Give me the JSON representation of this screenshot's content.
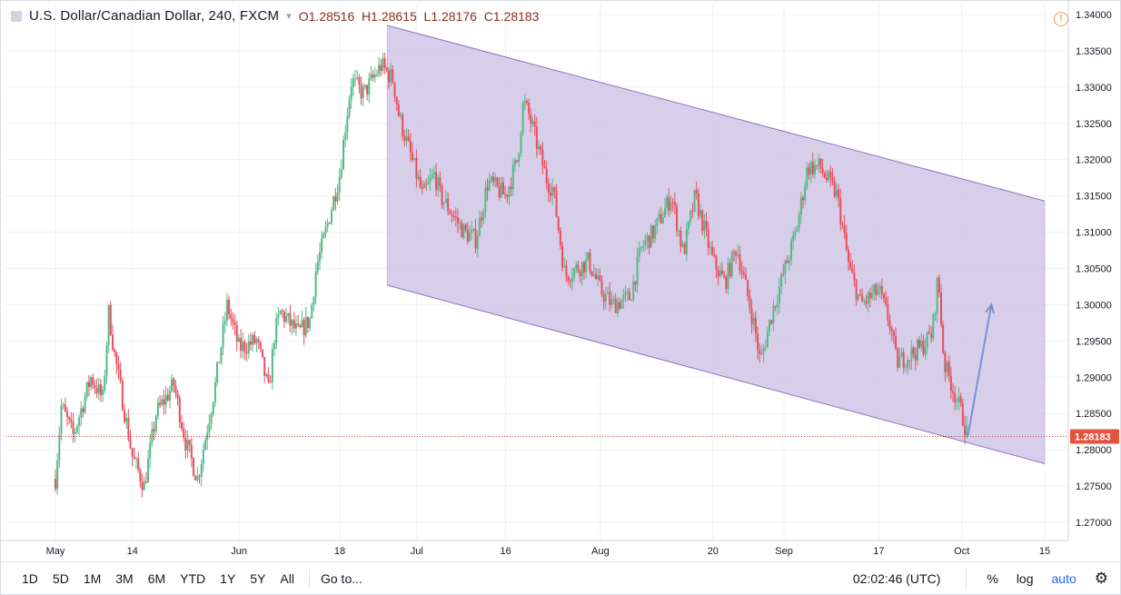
{
  "legend": {
    "symbol": "U.S. Dollar/Canadian Dollar, 240, FXCM",
    "open_label": "O",
    "open": "1.28516",
    "high_label": "H",
    "high": "1.28615",
    "low_label": "L",
    "low": "1.28176",
    "close_label": "C",
    "close": "1.28183"
  },
  "bottom_bar": {
    "ranges": [
      "1D",
      "5D",
      "1M",
      "3M",
      "6M",
      "YTD",
      "1Y",
      "5Y",
      "All"
    ],
    "goto": "Go to...",
    "clock": "02:02:46 (UTC)",
    "percent": "%",
    "log": "log",
    "auto": "auto"
  },
  "icons": {
    "alert": "alert-icon",
    "settings": "gear-icon",
    "symbol": "symbol-icon"
  },
  "colors": {
    "up": "#53b987",
    "down": "#eb4d5c",
    "channel_fill": "#c9bfe3",
    "channel_line": "#8d6fc6",
    "arrow": "#7b8fd0",
    "price_line": "#c0392b",
    "last_price_bg": "#e0533d"
  },
  "chart_data": {
    "type": "candlestick",
    "title": "U.S. Dollar/Canadian Dollar, 240, FXCM",
    "ylim": [
      1.2675,
      1.3415
    ],
    "y_ticks": [
      "1.34000",
      "1.33500",
      "1.33000",
      "1.32500",
      "1.32000",
      "1.31500",
      "1.31000",
      "1.30500",
      "1.30000",
      "1.29500",
      "1.29000",
      "1.28500",
      "1.28000",
      "1.27500",
      "1.27000"
    ],
    "x_ticks": [
      "May",
      "14",
      "Jun",
      "18",
      "Jul",
      "16",
      "Aug",
      "20",
      "Sep",
      "17",
      "Oct",
      "15"
    ],
    "last_price": "1.28183",
    "price_path": [
      [
        "May 1",
        1.276
      ],
      [
        "May 2",
        1.286
      ],
      [
        "May 4",
        1.282
      ],
      [
        "May 7",
        1.29
      ],
      [
        "May 9",
        1.287
      ],
      [
        "May 10",
        1.299
      ],
      [
        "May 11",
        1.293
      ],
      [
        "May 14",
        1.279
      ],
      [
        "May 16",
        1.275
      ],
      [
        "May 18",
        1.285
      ],
      [
        "May 21",
        1.289
      ],
      [
        "May 23",
        1.281
      ],
      [
        "May 25",
        1.276
      ],
      [
        "May 28",
        1.289
      ],
      [
        "May 30",
        1.3
      ],
      [
        "Jun 1",
        1.294
      ],
      [
        "Jun 4",
        1.295
      ],
      [
        "Jun 6",
        1.288
      ],
      [
        "Jun 7",
        1.296
      ],
      [
        "Jun 8",
        1.299
      ],
      [
        "Jun 11",
        1.296
      ],
      [
        "Jun 13",
        1.298
      ],
      [
        "Jun 14",
        1.305
      ],
      [
        "Jun 15",
        1.308
      ],
      [
        "Jun 18",
        1.318
      ],
      [
        "Jun 19",
        1.325
      ],
      [
        "Jun 20",
        1.331
      ],
      [
        "Jun 22",
        1.329
      ],
      [
        "Jun 25",
        1.333
      ],
      [
        "Jun 27",
        1.331
      ],
      [
        "Jun 28",
        1.326
      ],
      [
        "Jul 2",
        1.315
      ],
      [
        "Jul 4",
        1.318
      ],
      [
        "Jul 5",
        1.315
      ],
      [
        "Jul 9",
        1.31
      ],
      [
        "Jul 11",
        1.309
      ],
      [
        "Jul 13",
        1.317
      ],
      [
        "Jul 16",
        1.315
      ],
      [
        "Jul 18",
        1.32
      ],
      [
        "Jul 19",
        1.328
      ],
      [
        "Jul 20",
        1.326
      ],
      [
        "Jul 23",
        1.317
      ],
      [
        "Jul 24",
        1.316
      ],
      [
        "Jul 26",
        1.304
      ],
      [
        "Jul 30",
        1.306
      ],
      [
        "Aug 1",
        1.302
      ],
      [
        "Aug 3",
        1.3
      ],
      [
        "Aug 6",
        1.301
      ],
      [
        "Aug 8",
        1.308
      ],
      [
        "Aug 10",
        1.31
      ],
      [
        "Aug 13",
        1.315
      ],
      [
        "Aug 15",
        1.307
      ],
      [
        "Aug 17",
        1.315
      ],
      [
        "Aug 20",
        1.306
      ],
      [
        "Aug 22",
        1.303
      ],
      [
        "Aug 24",
        1.308
      ],
      [
        "Aug 27",
        1.297
      ],
      [
        "Aug 28",
        1.292
      ],
      [
        "Aug 30",
        1.299
      ],
      [
        "Sep 3",
        1.31
      ],
      [
        "Sep 5",
        1.319
      ],
      [
        "Sep 7",
        1.319
      ],
      [
        "Sep 10",
        1.315
      ],
      [
        "Sep 12",
        1.305
      ],
      [
        "Sep 14",
        1.3
      ],
      [
        "Sep 17",
        1.302
      ],
      [
        "Sep 19",
        1.297
      ],
      [
        "Sep 20",
        1.292
      ],
      [
        "Sep 24",
        1.294
      ],
      [
        "Sep 26",
        1.296
      ],
      [
        "Sep 27",
        1.304
      ],
      [
        "Sep 28",
        1.292
      ],
      [
        "Oct 1",
        1.285
      ],
      [
        "Oct 2",
        1.28183
      ]
    ],
    "channel": {
      "upper": [
        [
          "Jun 26",
          1.3385
        ],
        [
          "Oct 15",
          1.3143
        ]
      ],
      "lower": [
        [
          "Jun 26",
          1.3027
        ],
        [
          "Oct 15",
          1.2781
        ]
      ]
    },
    "arrow": [
      [
        "Oct 2",
        1.2818
      ],
      [
        "Oct 6",
        1.3
      ]
    ]
  }
}
